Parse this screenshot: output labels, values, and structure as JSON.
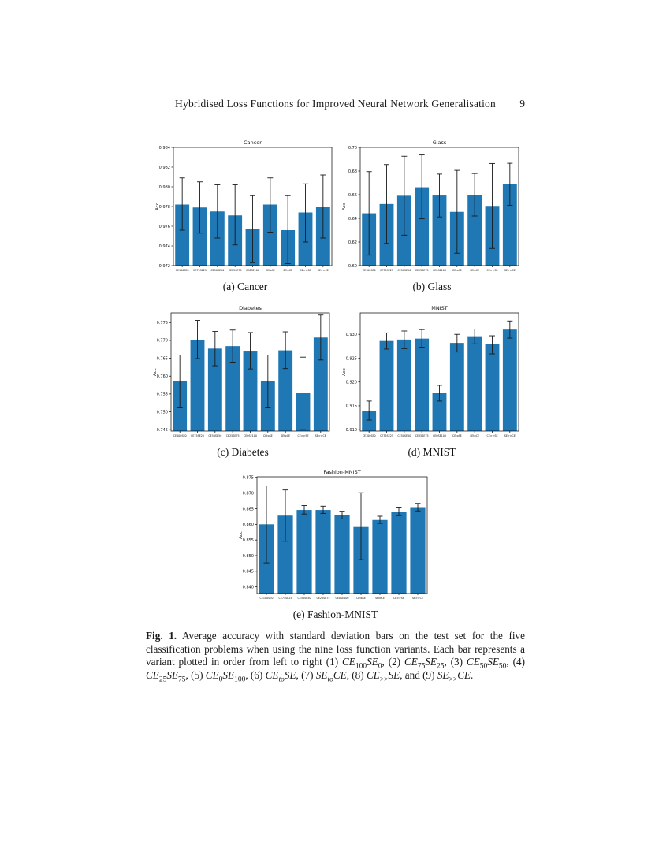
{
  "page": {
    "background": "#ffffff"
  },
  "header": {
    "title": "Hybridised Loss Functions for Improved Neural Network Generalisation",
    "page_number": "9"
  },
  "chart_data": [
    {
      "type": "bar",
      "title": "Cancer",
      "subcaption": "(a) Cancer",
      "ylabel": "Acc",
      "bar_color": "#1f77b4",
      "error_color": "#1a1a1a",
      "grid": false,
      "ylim": [
        0.972,
        0.984
      ],
      "ytick_values": [
        0.972,
        0.974,
        0.976,
        0.978,
        0.98,
        0.982,
        0.984
      ],
      "ytick_labels": [
        "0.972",
        "0.974",
        "0.976",
        "0.978",
        "0.980",
        "0.982",
        "0.984"
      ],
      "categories": [
        "CE100SE0",
        "CE75SE25",
        "CE50SE50",
        "CE25SE75",
        "CE0SE100",
        "CEtoSE",
        "SEtoCE",
        "CE>>SE",
        "SE>>CE"
      ],
      "values": [
        0.9782,
        0.9779,
        0.9775,
        0.9771,
        0.9757,
        0.9782,
        0.9756,
        0.9774,
        0.978
      ],
      "err_lo": [
        0.9756,
        0.9753,
        0.9748,
        0.9741,
        0.9723,
        0.9754,
        0.9722,
        0.9744,
        0.9748
      ],
      "err_hi": [
        0.9809,
        0.9805,
        0.9802,
        0.9802,
        0.9791,
        0.9809,
        0.9791,
        0.9803,
        0.9812
      ]
    },
    {
      "type": "bar",
      "title": "Glass",
      "subcaption": "(b) Glass",
      "ylabel": "Acc",
      "bar_color": "#1f77b4",
      "error_color": "#1a1a1a",
      "grid": false,
      "ylim": [
        0.6,
        0.7
      ],
      "ytick_values": [
        0.6,
        0.62,
        0.64,
        0.66,
        0.68,
        0.7
      ],
      "ytick_labels": [
        "0.60",
        "0.62",
        "0.64",
        "0.66",
        "0.68",
        "0.70"
      ],
      "categories": [
        "CE100SE0",
        "CE75SE25",
        "CE50SE50",
        "CE25SE75",
        "CE0SE100",
        "CEtoSE",
        "SEtoCE",
        "CE>>SE",
        "SE>>CE"
      ],
      "values": [
        0.6443,
        0.6521,
        0.6591,
        0.6663,
        0.6593,
        0.6455,
        0.66,
        0.6505,
        0.6688
      ],
      "err_lo": [
        0.6089,
        0.6188,
        0.6258,
        0.6396,
        0.6412,
        0.6105,
        0.642,
        0.6145,
        0.651
      ],
      "err_hi": [
        0.6795,
        0.6855,
        0.6925,
        0.6936,
        0.6774,
        0.6806,
        0.6779,
        0.6864,
        0.6866
      ]
    },
    {
      "type": "bar",
      "title": "Diabetes",
      "subcaption": "(c) Diabetes",
      "ylabel": "Acc",
      "bar_color": "#1f77b4",
      "error_color": "#1a1a1a",
      "grid": false,
      "ylim": [
        0.7446,
        0.7777
      ],
      "ytick_values": [
        0.745,
        0.75,
        0.755,
        0.76,
        0.765,
        0.77,
        0.775
      ],
      "ytick_labels": [
        "0.745",
        "0.750",
        "0.755",
        "0.760",
        "0.765",
        "0.770",
        "0.775"
      ],
      "categories": [
        "CE100SE0",
        "CE75SE25",
        "CE50SE50",
        "CE25SE75",
        "CE0SE100",
        "CEtoSE",
        "SEtoCE",
        "CE>>SE",
        "SE>>CE"
      ],
      "values": [
        0.7586,
        0.7702,
        0.7677,
        0.7684,
        0.7671,
        0.7586,
        0.7672,
        0.7552,
        0.7708
      ],
      "err_lo": [
        0.7511,
        0.7649,
        0.7629,
        0.7639,
        0.762,
        0.7511,
        0.7621,
        0.745,
        0.7645
      ],
      "err_hi": [
        0.7659,
        0.7756,
        0.7725,
        0.7729,
        0.7722,
        0.7659,
        0.7724,
        0.7653,
        0.7771
      ]
    },
    {
      "type": "bar",
      "title": "MNIST",
      "subcaption": "(d) MNIST",
      "ylabel": "Acc",
      "bar_color": "#1f77b4",
      "error_color": "#1a1a1a",
      "grid": false,
      "ylim": [
        0.9097,
        0.9345
      ],
      "ytick_values": [
        0.91,
        0.915,
        0.92,
        0.925,
        0.93
      ],
      "ytick_labels": [
        "0.910",
        "0.915",
        "0.920",
        "0.925",
        "0.930"
      ],
      "categories": [
        "CE100SE0",
        "CE75SE25",
        "CE50SE50",
        "CE25SE75",
        "CE0SE100",
        "CEtoSE",
        "SEtoCE",
        "CE>>SE",
        "SE>>CE"
      ],
      "values": [
        0.914,
        0.9286,
        0.9289,
        0.9291,
        0.9177,
        0.9282,
        0.9296,
        0.9279,
        0.931
      ],
      "err_lo": [
        0.912,
        0.9269,
        0.927,
        0.9273,
        0.916,
        0.9263,
        0.928,
        0.9259,
        0.9292
      ],
      "err_hi": [
        0.916,
        0.9303,
        0.9307,
        0.931,
        0.9193,
        0.93,
        0.9311,
        0.9297,
        0.9328
      ]
    },
    {
      "type": "bar",
      "title": "Fashion-MNIST",
      "subcaption": "(e) Fashion-MNIST",
      "ylabel": "Acc",
      "bar_color": "#1f77b4",
      "error_color": "#1a1a1a",
      "grid": false,
      "ylim": [
        0.8379,
        0.8752
      ],
      "ytick_values": [
        0.84,
        0.845,
        0.85,
        0.855,
        0.86,
        0.865,
        0.87,
        0.875
      ],
      "ytick_labels": [
        "0.840",
        "0.845",
        "0.850",
        "0.855",
        "0.860",
        "0.865",
        "0.870",
        "0.875"
      ],
      "categories": [
        "CE100SE0",
        "CE75SE25",
        "CE50SE50",
        "CE25SE75",
        "CE0SE100",
        "CEtoSE",
        "SEtoCE",
        "CE>>SE",
        "SE>>CE"
      ],
      "values": [
        0.86,
        0.8628,
        0.8646,
        0.8646,
        0.863,
        0.8594,
        0.8614,
        0.8641,
        0.8655
      ],
      "err_lo": [
        0.8477,
        0.8546,
        0.8633,
        0.8635,
        0.8617,
        0.8487,
        0.8603,
        0.8628,
        0.8643
      ],
      "err_hi": [
        0.8723,
        0.871,
        0.866,
        0.8658,
        0.8642,
        0.8701,
        0.8626,
        0.8655,
        0.8667
      ]
    }
  ],
  "caption": {
    "label": "Fig. 1.",
    "segments": [
      {
        "t": " Average accuracy with standard deviation bars on the test set for the five classification problems when using the nine loss function variants. Each bar represents a variant plotted in order from left to right (1) "
      },
      {
        "t": "CE",
        "i": true
      },
      {
        "t": "100",
        "sub": true
      },
      {
        "t": "SE",
        "i": true
      },
      {
        "t": "0",
        "sub": true
      },
      {
        "t": ", (2) "
      },
      {
        "t": "CE",
        "i": true
      },
      {
        "t": "75",
        "sub": true
      },
      {
        "t": "SE",
        "i": true
      },
      {
        "t": "25",
        "sub": true
      },
      {
        "t": ", (3) "
      },
      {
        "t": "CE",
        "i": true
      },
      {
        "t": "50",
        "sub": true
      },
      {
        "t": "SE",
        "i": true
      },
      {
        "t": "50",
        "sub": true
      },
      {
        "t": ", (4) "
      },
      {
        "t": "CE",
        "i": true
      },
      {
        "t": "25",
        "sub": true
      },
      {
        "t": "SE",
        "i": true
      },
      {
        "t": "75",
        "sub": true
      },
      {
        "t": ", (5) "
      },
      {
        "t": "CE",
        "i": true
      },
      {
        "t": "0",
        "sub": true
      },
      {
        "t": "SE",
        "i": true
      },
      {
        "t": "100",
        "sub": true
      },
      {
        "t": ", (6) "
      },
      {
        "t": "CE",
        "i": true
      },
      {
        "t": "to",
        "sub": true,
        "i": true
      },
      {
        "t": "SE",
        "i": true
      },
      {
        "t": ", (7) "
      },
      {
        "t": "SE",
        "i": true
      },
      {
        "t": "to",
        "sub": true,
        "i": true
      },
      {
        "t": "CE",
        "i": true
      },
      {
        "t": ", (8) "
      },
      {
        "t": "CE",
        "i": true
      },
      {
        "t": ">>",
        "sub": true
      },
      {
        "t": "SE",
        "i": true
      },
      {
        "t": ", and (9) "
      },
      {
        "t": "SE",
        "i": true
      },
      {
        "t": ">>",
        "sub": true
      },
      {
        "t": "CE",
        "i": true
      },
      {
        "t": "."
      }
    ]
  }
}
